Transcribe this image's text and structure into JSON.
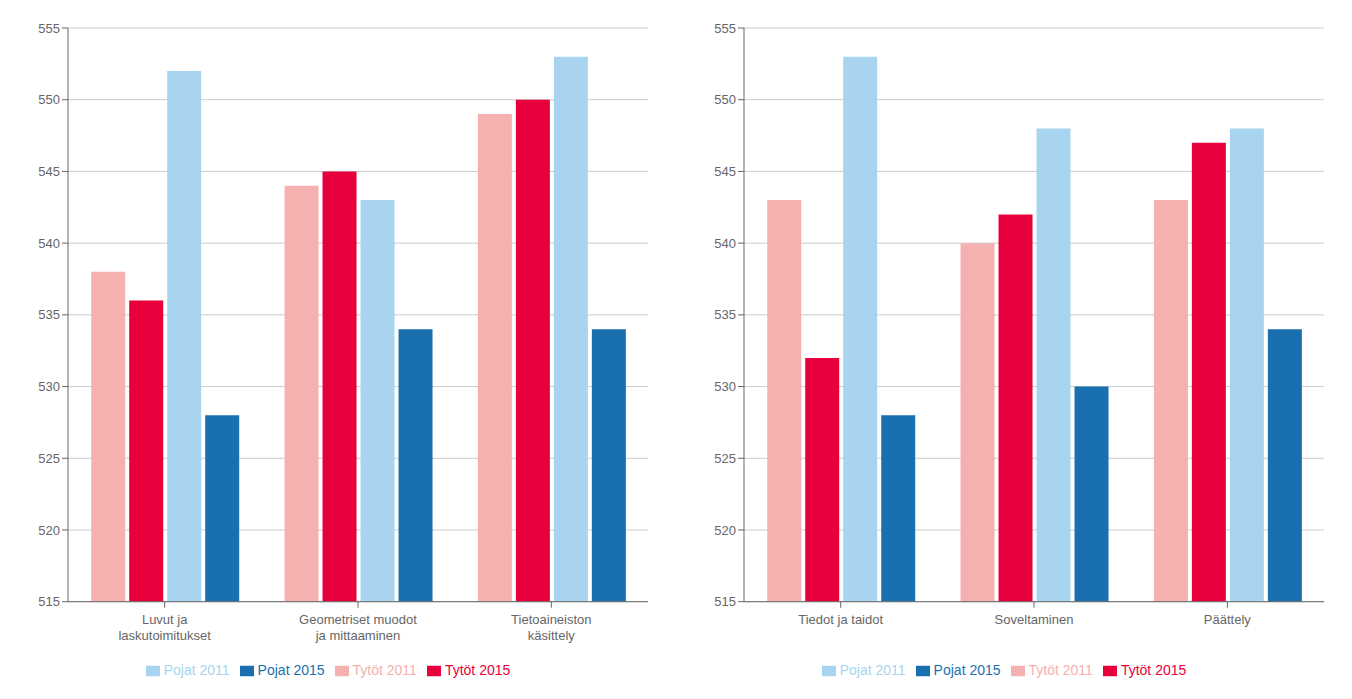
{
  "chart_data": [
    {
      "type": "bar",
      "categories": [
        "Luvut ja\nlaskutoimitukset",
        "Geometriset muodot\nja mittaaminen",
        "Tietoaineiston\nkäsittely"
      ],
      "series": [
        {
          "name": "Tytöt 2011",
          "color": "#f5b0b0",
          "values": [
            538,
            544,
            549
          ]
        },
        {
          "name": "Tytöt 2015",
          "color": "#e8003d",
          "values": [
            536,
            545,
            550
          ]
        },
        {
          "name": "Pojat 2011",
          "color": "#a8d4f0",
          "values": [
            552,
            543,
            553
          ]
        },
        {
          "name": "Pojat 2015",
          "color": "#1a6faf",
          "values": [
            528,
            534,
            534
          ]
        }
      ],
      "ylim": [
        515,
        555
      ],
      "yticks": [
        515,
        520,
        525,
        530,
        535,
        540,
        545,
        550,
        555
      ],
      "grid": true,
      "legend": "bottom"
    },
    {
      "type": "bar",
      "categories": [
        "Tiedot ja taidot",
        "Soveltaminen",
        "Päättely"
      ],
      "series": [
        {
          "name": "Tytöt 2011",
          "color": "#f5b0b0",
          "values": [
            543,
            540,
            543
          ]
        },
        {
          "name": "Tytöt 2015",
          "color": "#e8003d",
          "values": [
            532,
            542,
            547
          ]
        },
        {
          "name": "Pojat 2011",
          "color": "#a8d4f0",
          "values": [
            553,
            548,
            548
          ]
        },
        {
          "name": "Pojat 2015",
          "color": "#1a6faf",
          "values": [
            528,
            530,
            534
          ]
        }
      ],
      "ylim": [
        515,
        555
      ],
      "yticks": [
        515,
        520,
        525,
        530,
        535,
        540,
        545,
        550,
        555
      ],
      "grid": true,
      "legend": "bottom"
    }
  ]
}
